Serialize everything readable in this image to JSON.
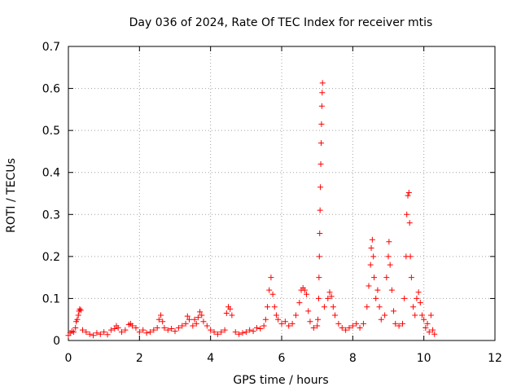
{
  "chart_data": {
    "type": "scatter",
    "title": "Day 036 of 2024, Rate Of TEC Index for receiver mtis",
    "xlabel": "GPS time / hours",
    "ylabel": "ROTI / TECUs",
    "xlim": [
      0,
      12
    ],
    "ylim": [
      0,
      0.7
    ],
    "x_ticks": [
      0,
      2,
      4,
      6,
      8,
      10,
      12
    ],
    "y_ticks": [
      0,
      0.1,
      0.2,
      0.3,
      0.4,
      0.5,
      0.6,
      0.7
    ],
    "x_tick_labels": [
      "0",
      "2",
      "4",
      "6",
      "8",
      "10",
      "12"
    ],
    "y_tick_labels": [
      "0",
      "0.1",
      "0.2",
      "0.3",
      "0.4",
      "0.5",
      "0.6",
      "0.7"
    ],
    "grid": true,
    "marker": "+",
    "color": "#ff0000",
    "series": [
      {
        "name": "ROTI",
        "points": [
          [
            0.0,
            0.012
          ],
          [
            0.05,
            0.018
          ],
          [
            0.1,
            0.022
          ],
          [
            0.15,
            0.02
          ],
          [
            0.2,
            0.03
          ],
          [
            0.22,
            0.045
          ],
          [
            0.25,
            0.05
          ],
          [
            0.28,
            0.06
          ],
          [
            0.3,
            0.07
          ],
          [
            0.32,
            0.075
          ],
          [
            0.35,
            0.072
          ],
          [
            0.4,
            0.025
          ],
          [
            0.5,
            0.02
          ],
          [
            0.6,
            0.015
          ],
          [
            0.7,
            0.012
          ],
          [
            0.8,
            0.018
          ],
          [
            0.9,
            0.015
          ],
          [
            1.0,
            0.02
          ],
          [
            1.1,
            0.014
          ],
          [
            1.2,
            0.025
          ],
          [
            1.3,
            0.028
          ],
          [
            1.35,
            0.035
          ],
          [
            1.4,
            0.03
          ],
          [
            1.5,
            0.02
          ],
          [
            1.6,
            0.025
          ],
          [
            1.7,
            0.038
          ],
          [
            1.75,
            0.04
          ],
          [
            1.8,
            0.035
          ],
          [
            1.9,
            0.03
          ],
          [
            2.0,
            0.02
          ],
          [
            2.1,
            0.025
          ],
          [
            2.2,
            0.018
          ],
          [
            2.3,
            0.02
          ],
          [
            2.4,
            0.025
          ],
          [
            2.5,
            0.03
          ],
          [
            2.55,
            0.05
          ],
          [
            2.6,
            0.06
          ],
          [
            2.65,
            0.045
          ],
          [
            2.7,
            0.03
          ],
          [
            2.8,
            0.025
          ],
          [
            2.9,
            0.028
          ],
          [
            3.0,
            0.022
          ],
          [
            3.1,
            0.03
          ],
          [
            3.2,
            0.035
          ],
          [
            3.3,
            0.04
          ],
          [
            3.35,
            0.058
          ],
          [
            3.4,
            0.05
          ],
          [
            3.5,
            0.035
          ],
          [
            3.55,
            0.05
          ],
          [
            3.6,
            0.04
          ],
          [
            3.65,
            0.055
          ],
          [
            3.7,
            0.068
          ],
          [
            3.75,
            0.06
          ],
          [
            3.8,
            0.045
          ],
          [
            3.9,
            0.035
          ],
          [
            4.0,
            0.025
          ],
          [
            4.1,
            0.02
          ],
          [
            4.2,
            0.015
          ],
          [
            4.3,
            0.02
          ],
          [
            4.4,
            0.025
          ],
          [
            4.45,
            0.065
          ],
          [
            4.5,
            0.08
          ],
          [
            4.55,
            0.075
          ],
          [
            4.6,
            0.06
          ],
          [
            4.7,
            0.02
          ],
          [
            4.8,
            0.015
          ],
          [
            4.9,
            0.018
          ],
          [
            5.0,
            0.02
          ],
          [
            5.1,
            0.025
          ],
          [
            5.2,
            0.022
          ],
          [
            5.3,
            0.03
          ],
          [
            5.4,
            0.028
          ],
          [
            5.5,
            0.035
          ],
          [
            5.55,
            0.05
          ],
          [
            5.6,
            0.08
          ],
          [
            5.65,
            0.12
          ],
          [
            5.7,
            0.15
          ],
          [
            5.75,
            0.11
          ],
          [
            5.8,
            0.08
          ],
          [
            5.85,
            0.06
          ],
          [
            5.9,
            0.05
          ],
          [
            6.0,
            0.04
          ],
          [
            6.1,
            0.045
          ],
          [
            6.2,
            0.035
          ],
          [
            6.3,
            0.04
          ],
          [
            6.4,
            0.06
          ],
          [
            6.5,
            0.09
          ],
          [
            6.55,
            0.12
          ],
          [
            6.6,
            0.125
          ],
          [
            6.65,
            0.12
          ],
          [
            6.7,
            0.11
          ],
          [
            6.75,
            0.07
          ],
          [
            6.8,
            0.045
          ],
          [
            6.9,
            0.03
          ],
          [
            7.0,
            0.035
          ],
          [
            7.02,
            0.05
          ],
          [
            7.04,
            0.1
          ],
          [
            7.05,
            0.15
          ],
          [
            7.06,
            0.2
          ],
          [
            7.07,
            0.255
          ],
          [
            7.08,
            0.31
          ],
          [
            7.09,
            0.365
          ],
          [
            7.1,
            0.42
          ],
          [
            7.11,
            0.47
          ],
          [
            7.12,
            0.515
          ],
          [
            7.13,
            0.558
          ],
          [
            7.14,
            0.59
          ],
          [
            7.15,
            0.613
          ],
          [
            7.2,
            0.08
          ],
          [
            7.3,
            0.1
          ],
          [
            7.35,
            0.115
          ],
          [
            7.4,
            0.105
          ],
          [
            7.45,
            0.08
          ],
          [
            7.5,
            0.06
          ],
          [
            7.6,
            0.04
          ],
          [
            7.7,
            0.03
          ],
          [
            7.8,
            0.025
          ],
          [
            7.9,
            0.03
          ],
          [
            8.0,
            0.035
          ],
          [
            8.1,
            0.04
          ],
          [
            8.2,
            0.03
          ],
          [
            8.3,
            0.04
          ],
          [
            8.4,
            0.08
          ],
          [
            8.45,
            0.13
          ],
          [
            8.5,
            0.18
          ],
          [
            8.52,
            0.22
          ],
          [
            8.55,
            0.24
          ],
          [
            8.58,
            0.2
          ],
          [
            8.6,
            0.15
          ],
          [
            8.65,
            0.1
          ],
          [
            8.7,
            0.12
          ],
          [
            8.75,
            0.08
          ],
          [
            8.8,
            0.05
          ],
          [
            8.9,
            0.06
          ],
          [
            8.95,
            0.15
          ],
          [
            9.0,
            0.2
          ],
          [
            9.02,
            0.235
          ],
          [
            9.05,
            0.18
          ],
          [
            9.1,
            0.12
          ],
          [
            9.15,
            0.07
          ],
          [
            9.2,
            0.04
          ],
          [
            9.3,
            0.035
          ],
          [
            9.4,
            0.04
          ],
          [
            9.45,
            0.1
          ],
          [
            9.5,
            0.2
          ],
          [
            9.52,
            0.3
          ],
          [
            9.55,
            0.345
          ],
          [
            9.58,
            0.352
          ],
          [
            9.6,
            0.28
          ],
          [
            9.62,
            0.2
          ],
          [
            9.65,
            0.15
          ],
          [
            9.7,
            0.08
          ],
          [
            9.75,
            0.06
          ],
          [
            9.8,
            0.1
          ],
          [
            9.85,
            0.115
          ],
          [
            9.9,
            0.09
          ],
          [
            9.95,
            0.06
          ],
          [
            10.0,
            0.05
          ],
          [
            10.05,
            0.03
          ],
          [
            10.1,
            0.04
          ],
          [
            10.15,
            0.02
          ],
          [
            10.2,
            0.06
          ],
          [
            10.25,
            0.025
          ],
          [
            10.3,
            0.015
          ]
        ]
      }
    ]
  }
}
